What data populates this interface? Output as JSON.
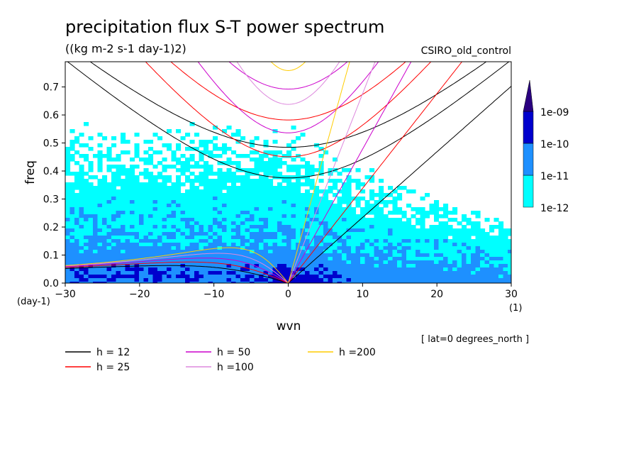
{
  "chart_data": {
    "type": "heatmap",
    "title": "precipitation flux S-T power spectrum",
    "units": "((kg m-2 s-1 day-1)2)",
    "dataset": "CSIRO_old_control",
    "xlabel": "wvn",
    "ylabel": "freq",
    "x_unit": "(1)",
    "y_unit": "(day-1)",
    "footnote": "[ lat=0 degrees_north ]",
    "xlim": [
      -30,
      30
    ],
    "ylim": [
      0,
      0.79
    ],
    "x_ticks": [
      -30,
      -20,
      -10,
      0,
      10,
      20,
      30
    ],
    "y_ticks": [
      0.0,
      0.1,
      0.2,
      0.3,
      0.4,
      0.5,
      0.6,
      0.7
    ],
    "colorbar": {
      "labels": [
        "1e-12",
        "1e-11",
        "1e-10",
        "1e-09"
      ],
      "colors": [
        "#00ffff",
        "#1e90ff",
        "#0000cd",
        "#2a0080"
      ],
      "extend": "max"
    },
    "dispersion_curves": [
      {
        "name": "h = 12",
        "h": 12,
        "color": "#000000"
      },
      {
        "name": "h = 25",
        "h": 25,
        "color": "#ff0000"
      },
      {
        "name": "h = 50",
        "h": 50,
        "color": "#cc00cc"
      },
      {
        "name": "h =100",
        "h": 100,
        "color": "#dd88dd"
      },
      {
        "name": "h =200",
        "h": 200,
        "color": "#ffcc00"
      }
    ]
  }
}
